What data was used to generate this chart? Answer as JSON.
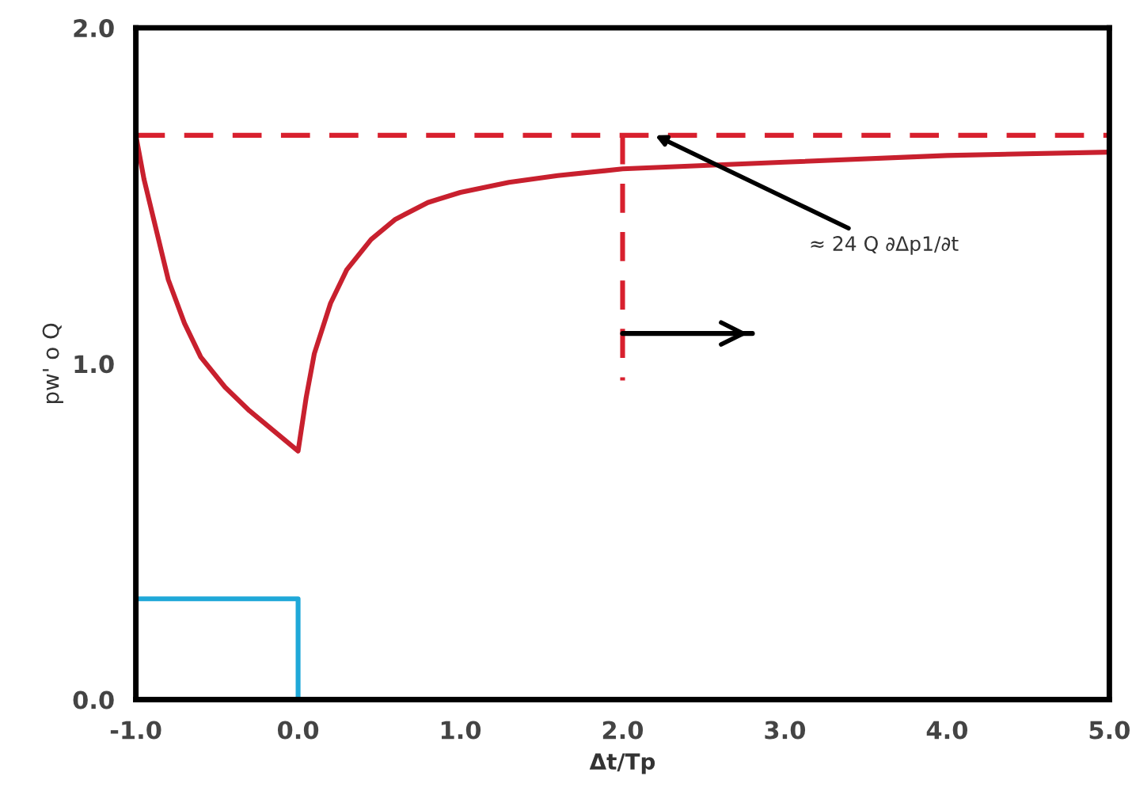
{
  "chart_data": {
    "type": "line",
    "xlabel": "Δt/Tp",
    "ylabel": "pw' o Q",
    "xlim": [
      -1.0,
      5.0
    ],
    "ylim": [
      0.0,
      2.0
    ],
    "xticks": [
      {
        "value": -1.0,
        "label": "-1.0"
      },
      {
        "value": 0.0,
        "label": "0.0"
      },
      {
        "value": 1.0,
        "label": "1.0"
      },
      {
        "value": 2.0,
        "label": "2.0"
      },
      {
        "value": 3.0,
        "label": "3.0"
      },
      {
        "value": 4.0,
        "label": "4.0"
      },
      {
        "value": 5.0,
        "label": "5.0"
      }
    ],
    "yticks": [
      {
        "value": 0.0,
        "label": "0.0"
      },
      {
        "value": 1.0,
        "label": "1.0"
      },
      {
        "value": 2.0,
        "label": "2.0"
      }
    ],
    "grid": false,
    "legend": false,
    "marker": "none",
    "series": [
      {
        "color": "#c8202e",
        "line_style": "solid",
        "x": [
          -1.0,
          -0.95,
          -0.9,
          -0.8,
          -0.7,
          -0.6,
          -0.45,
          -0.3,
          -0.15,
          0.0,
          0.05,
          0.1,
          0.2,
          0.3,
          0.45,
          0.6,
          0.8,
          1.0,
          1.3,
          1.6,
          2.0,
          2.5,
          3.0,
          4.0,
          5.0
        ],
        "values": [
          1.68,
          1.55,
          1.45,
          1.25,
          1.12,
          1.02,
          0.93,
          0.86,
          0.8,
          0.74,
          0.9,
          1.03,
          1.18,
          1.28,
          1.37,
          1.43,
          1.48,
          1.51,
          1.54,
          1.56,
          1.58,
          1.59,
          1.6,
          1.62,
          1.63
        ]
      },
      {
        "color": "#1fa8d8",
        "line_style": "solid",
        "x": [
          -1.0,
          0.0,
          0.0
        ],
        "values": [
          0.3,
          0.3,
          0.0
        ]
      },
      {
        "color": "#d8202e",
        "line_style": "dashed",
        "x": [
          2.0,
          2.0
        ],
        "values": [
          1.68,
          0.95
        ]
      },
      {
        "color": "#000000",
        "line_style": "solid",
        "x": [
          2.0,
          2.8
        ],
        "values": [
          1.09,
          1.09
        ]
      }
    ],
    "ref_lines": [
      {
        "axis": "y",
        "value": 1.68,
        "color": "#d8202e",
        "line_style": "dashed"
      }
    ],
    "annotations": [
      {
        "text": "≈ 24 Q ∂Δp1/∂t",
        "x": 2.2,
        "y": 1.68
      }
    ]
  }
}
